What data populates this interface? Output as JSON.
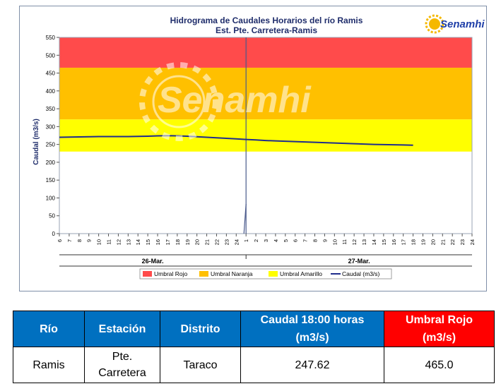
{
  "chart_data": {
    "type": "line",
    "title": "Hidrograma de Caudales Horarios del río Ramis",
    "subtitle": "Est. Pte. Carretera-Ramis",
    "ylabel": "Caudal  (m3/s)",
    "xlabel": "",
    "ylim": [
      0,
      550
    ],
    "yticks": [
      0,
      50,
      100,
      150,
      200,
      250,
      300,
      350,
      400,
      450,
      500,
      550
    ],
    "xticks": [
      "6",
      "7",
      "8",
      "9",
      "10",
      "11",
      "12",
      "13",
      "14",
      "15",
      "16",
      "17",
      "18",
      "19",
      "20",
      "21",
      "22",
      "23",
      "24",
      "1",
      "2",
      "3",
      "4",
      "5",
      "6",
      "7",
      "8",
      "9",
      "10",
      "11",
      "12",
      "13",
      "14",
      "15",
      "16",
      "17",
      "18",
      "19",
      "20",
      "21",
      "22",
      "23",
      "24"
    ],
    "date_labels": [
      "26-Mar.",
      "27-Mar."
    ],
    "thresholds": [
      {
        "name": "Umbral Rojo",
        "from": 465,
        "to": 550,
        "color": "#ff4b4b"
      },
      {
        "name": "Umbral Naranja",
        "from": 320,
        "to": 465,
        "color": "#ffc000"
      },
      {
        "name": "Umbral Amarillo",
        "from": 230,
        "to": 320,
        "color": "#ffff00"
      }
    ],
    "series": [
      {
        "name": "Caudal (m3/s)",
        "color": "#1f2d8c",
        "x": [
          0,
          1,
          2,
          3,
          4,
          5,
          6,
          7,
          8,
          9,
          10,
          11,
          12,
          13,
          14,
          15,
          16,
          17,
          18,
          19,
          20,
          21,
          22,
          23,
          24,
          25,
          26,
          27,
          28,
          29,
          30,
          31,
          32,
          33,
          34,
          35,
          36
        ],
        "values": [
          270,
          270.5,
          271,
          271.5,
          272,
          272,
          272,
          272,
          272.5,
          273,
          274,
          274.5,
          274,
          273,
          271.5,
          270,
          268.5,
          267,
          265.5,
          264,
          262.5,
          261,
          260,
          259,
          258,
          257,
          256,
          255,
          254,
          253,
          252,
          251,
          250,
          249.5,
          249,
          248.5,
          247.62
        ]
      }
    ],
    "cursor_label": "1",
    "watermark": "Senamhi",
    "logo_text": "Senamhi",
    "grid": false,
    "legend": "bottom",
    "legend_items": [
      {
        "label": "Umbral Rojo",
        "color": "#ff4b4b",
        "kind": "box"
      },
      {
        "label": "Umbral Naranja",
        "color": "#ffc000",
        "kind": "box"
      },
      {
        "label": "Umbral Amarillo",
        "color": "#ffff00",
        "kind": "box"
      },
      {
        "label": "Caudal (m3/s)",
        "color": "#1f2d8c",
        "kind": "line"
      }
    ]
  },
  "table": {
    "headers": {
      "rio": "Río",
      "estacion": "Estación",
      "distrito": "Distrito",
      "caudal_l1": "Caudal  18:00 horas",
      "caudal_l2": "(m3/s)",
      "umbral_l1": "Umbral Rojo",
      "umbral_l2": "(m3/s)"
    },
    "row": {
      "rio": "Ramis",
      "estacion_l1": "Pte.",
      "estacion_l2": "Carretera",
      "distrito": "Taraco",
      "caudal": "247.62",
      "umbral": "465.0"
    }
  }
}
